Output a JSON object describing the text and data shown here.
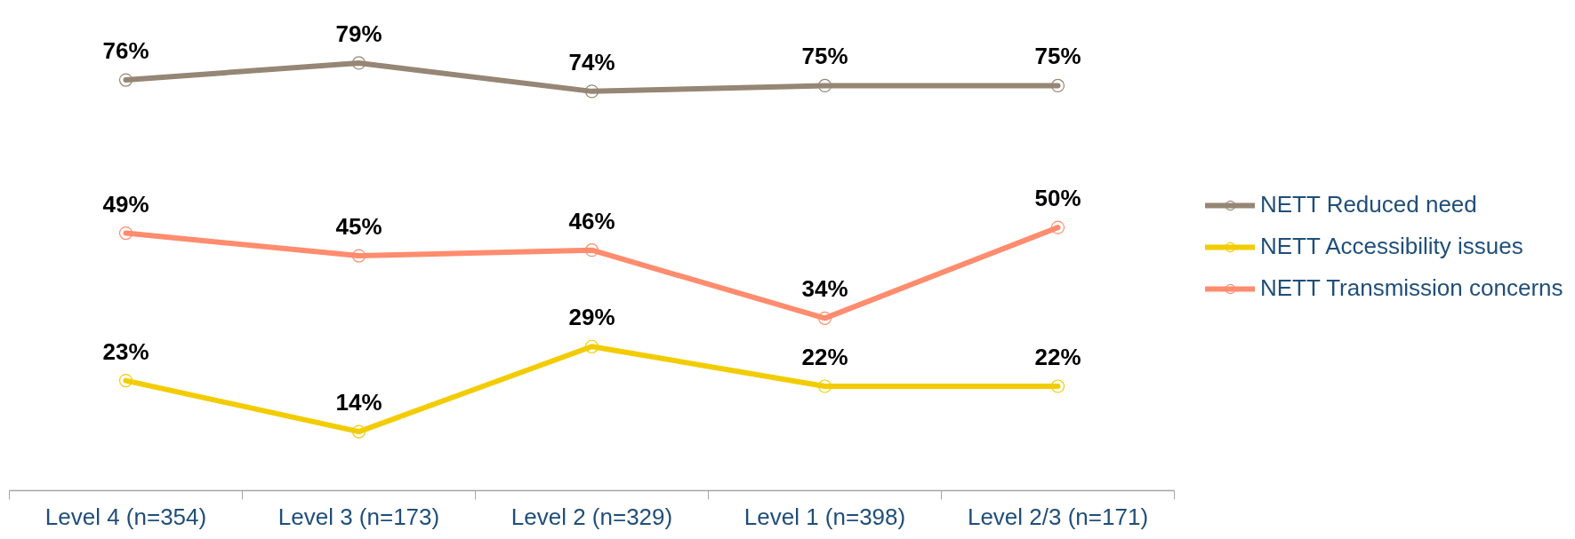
{
  "chart_data": {
    "type": "line",
    "categories": [
      "Level 4 (n=354)",
      "Level 3 (n=173)",
      "Level 2 (n=329)",
      "Level 1 (n=398)",
      "Level 2/3 (n=171)"
    ],
    "series": [
      {
        "name": "NETT Reduced need",
        "color": "#968675",
        "values": [
          76,
          79,
          74,
          75,
          75
        ],
        "value_labels": [
          "76%",
          "79%",
          "74%",
          "75%",
          "75%"
        ]
      },
      {
        "name": "NETT Accessibility issues",
        "color": "#f2cc00",
        "values": [
          23,
          14,
          29,
          22,
          22
        ],
        "value_labels": [
          "23%",
          "14%",
          "29%",
          "22%",
          "22%"
        ]
      },
      {
        "name": "NETT Transmission concerns",
        "color": "#ff8c6e",
        "values": [
          49,
          45,
          46,
          34,
          50
        ],
        "value_labels": [
          "49%",
          "45%",
          "46%",
          "34%",
          "50%"
        ]
      }
    ],
    "tick_labels": "x",
    "legend": "right",
    "marker": "circle",
    "line_style": "solid"
  }
}
